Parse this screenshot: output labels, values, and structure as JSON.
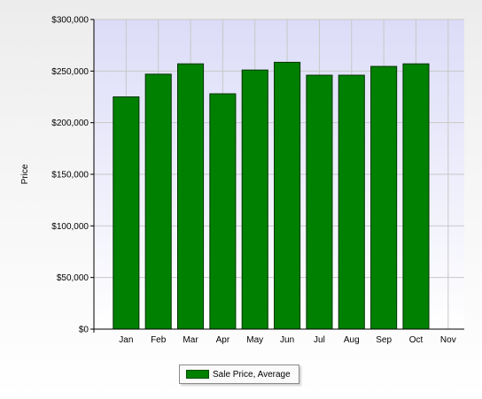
{
  "chart_data": {
    "type": "bar",
    "title": "",
    "xlabel": "",
    "ylabel": "Price",
    "categories": [
      "Jan",
      "Feb",
      "Mar",
      "Apr",
      "May",
      "Jun",
      "Jul",
      "Aug",
      "Sep",
      "Oct",
      "Nov"
    ],
    "series": [
      {
        "name": "Sale Price, Average",
        "values": [
          225000,
          247000,
          257000,
          228000,
          251000,
          258500,
          246000,
          246000,
          254500,
          257000,
          null
        ]
      }
    ],
    "ylim": [
      0,
      300000
    ],
    "yticks": [
      0,
      50000,
      100000,
      150000,
      200000,
      250000,
      300000
    ],
    "ytick_labels": [
      "$0",
      "$50,000",
      "$100,000",
      "$150,000",
      "$200,000",
      "$250,000",
      "$300,000"
    ],
    "grid": true,
    "legend_position": "bottom-center",
    "colors": {
      "bar_fill": "#008000",
      "bar_stroke": "#003300",
      "plot_top": "#dcdcf8",
      "plot_bottom": "#ffffff",
      "gridline": "#c8c8c8"
    }
  }
}
